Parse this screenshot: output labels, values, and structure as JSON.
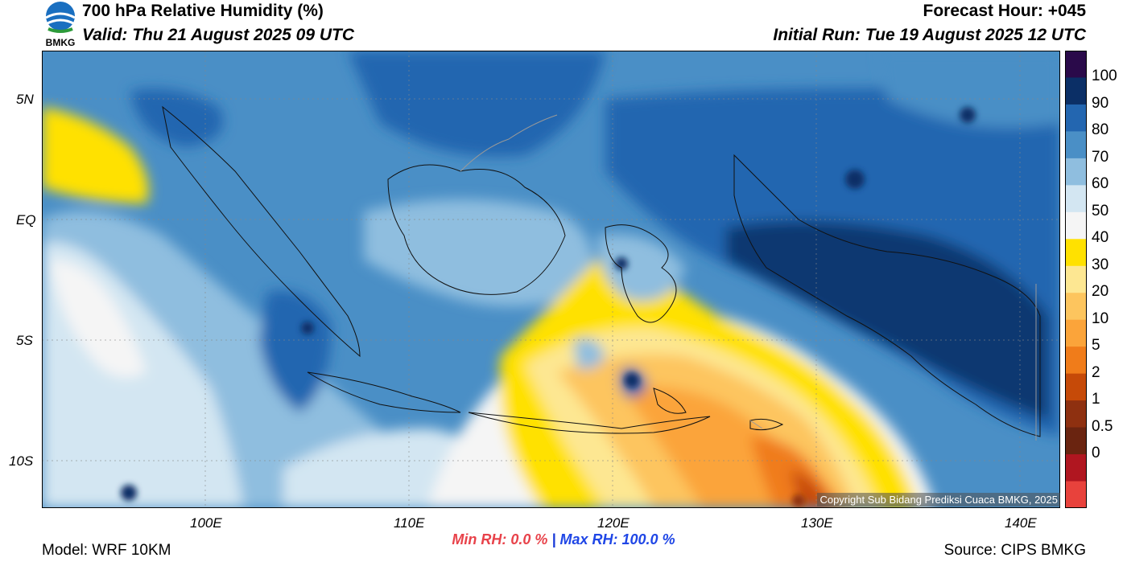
{
  "header": {
    "title": "700 hPa Relative Humidity (%)",
    "valid": "Valid: Thu 21 August 2025 09 UTC",
    "forecast_hour": "Forecast Hour: +045",
    "initial_run": "Initial Run: Tue 19 August 2025 12 UTC",
    "logo_text": "BMKG"
  },
  "map": {
    "lat_labels": [
      "5N",
      "EQ",
      "5S",
      "10S"
    ],
    "lon_labels": [
      "100E",
      "110E",
      "120E",
      "130E",
      "140E"
    ],
    "copyright": "Copyright Sub Bidang Prediksi Cuaca BMKG, 2025"
  },
  "colorbar": {
    "levels": [
      "100",
      "90",
      "80",
      "70",
      "60",
      "50",
      "40",
      "30",
      "20",
      "10",
      "5",
      "2",
      "1",
      "0.5",
      "0"
    ],
    "colors": [
      "#2a0a4a",
      "#0b2f66",
      "#2366b0",
      "#4a8fc6",
      "#8fbedf",
      "#d3e6f2",
      "#f5f5f5",
      "#ffe100",
      "#fde792",
      "#fdc55e",
      "#fba43a",
      "#f07c1a",
      "#c64a08",
      "#8e3010",
      "#6a2410",
      "#b01620",
      "#e8423c"
    ]
  },
  "stats": {
    "min_rh": "Min RH:   0.0 %",
    "separator": "|",
    "max_rh": "Max RH: 100.0 %"
  },
  "footer": {
    "model": "Model: WRF 10KM",
    "source": "Source: CIPS BMKG"
  }
}
